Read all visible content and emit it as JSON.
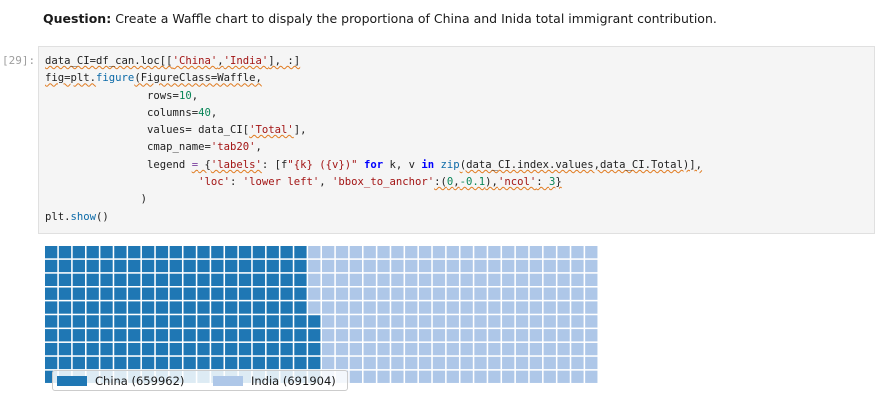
{
  "question": {
    "label": "Question:",
    "text": "Create a Waffle chart to dispaly the proportiona of China and Inida total immigrant contribution."
  },
  "cell": {
    "prompt": "[29]:",
    "code_lines": [
      [
        {
          "t": "data_CI=df_can.loc[[",
          "c": "plain",
          "sq": true
        },
        {
          "t": "'China'",
          "c": "str",
          "sq": true
        },
        {
          "t": ",",
          "c": "plain",
          "sq": true
        },
        {
          "t": "'India'",
          "c": "str",
          "sq": true
        },
        {
          "t": "], :]",
          "c": "plain",
          "sq": true
        }
      ],
      [
        {
          "t": "fig=plt.",
          "c": "plain",
          "sq": true
        },
        {
          "t": "figure",
          "c": "fn"
        },
        {
          "t": "(FigureClass=Waffle,",
          "c": "plain",
          "sq": true
        }
      ],
      [
        {
          "t": "                rows=",
          "c": "plain"
        },
        {
          "t": "10",
          "c": "num"
        },
        {
          "t": ",",
          "c": "plain"
        }
      ],
      [
        {
          "t": "                columns=",
          "c": "plain"
        },
        {
          "t": "40",
          "c": "num"
        },
        {
          "t": ",",
          "c": "plain"
        }
      ],
      [
        {
          "t": "                values= data_CI[",
          "c": "plain"
        },
        {
          "t": "'Total'",
          "c": "str",
          "sq": true
        },
        {
          "t": "],",
          "c": "plain"
        }
      ],
      [
        {
          "t": "                cmap_name=",
          "c": "plain"
        },
        {
          "t": "'tab20'",
          "c": "str"
        },
        {
          "t": ",",
          "c": "plain"
        }
      ],
      [
        {
          "t": "                legend ",
          "c": "plain"
        },
        {
          "t": "=",
          "c": "op",
          "sq": true
        },
        {
          "t": " {",
          "c": "plain",
          "sq": true
        },
        {
          "t": "'labels'",
          "c": "str",
          "sq": true
        },
        {
          "t": ": [f",
          "c": "plain"
        },
        {
          "t": "\"{k} ({v})\"",
          "c": "str"
        },
        {
          "t": " ",
          "c": "plain"
        },
        {
          "t": "for",
          "c": "kw"
        },
        {
          "t": " k, v ",
          "c": "plain"
        },
        {
          "t": "in",
          "c": "kw"
        },
        {
          "t": " ",
          "c": "plain"
        },
        {
          "t": "zip",
          "c": "fn"
        },
        {
          "t": "(data_CI.index.values,data_CI.Total)],",
          "c": "plain",
          "sq": true
        }
      ],
      [
        {
          "t": "                        ",
          "c": "plain"
        },
        {
          "t": "'loc'",
          "c": "str"
        },
        {
          "t": ": ",
          "c": "plain"
        },
        {
          "t": "'lower left'",
          "c": "str"
        },
        {
          "t": ", ",
          "c": "plain"
        },
        {
          "t": "'bbox_to_anchor'",
          "c": "str"
        },
        {
          "t": ":(",
          "c": "plain",
          "sq": true
        },
        {
          "t": "0",
          "c": "num",
          "sq": true
        },
        {
          "t": ",",
          "c": "plain",
          "sq": true
        },
        {
          "t": "-0.1",
          "c": "num",
          "sq": true
        },
        {
          "t": "),",
          "c": "plain",
          "sq": true
        },
        {
          "t": "'ncol'",
          "c": "str",
          "sq": true
        },
        {
          "t": ": ",
          "c": "plain",
          "sq": true
        },
        {
          "t": "3",
          "c": "num",
          "sq": true
        },
        {
          "t": "}",
          "c": "plain",
          "sq": true
        }
      ],
      [
        {
          "t": "               )",
          "c": "plain"
        }
      ],
      [
        {
          "t": "plt.",
          "c": "plain"
        },
        {
          "t": "show",
          "c": "fn"
        },
        {
          "t": "()",
          "c": "plain"
        }
      ]
    ]
  },
  "chart_data": {
    "type": "waffle",
    "rows": 10,
    "columns": 40,
    "fill_order": "column-major, bottom-to-top, left-to-right",
    "series": [
      {
        "name": "China",
        "value": 659962,
        "cells": 195,
        "color": "#1f77b4"
      },
      {
        "name": "India",
        "value": 691904,
        "cells": 205,
        "color": "#aec7e8"
      }
    ],
    "legend": {
      "placement": "lower left",
      "entries": [
        "China (659962)",
        "India (691904)"
      ]
    }
  }
}
